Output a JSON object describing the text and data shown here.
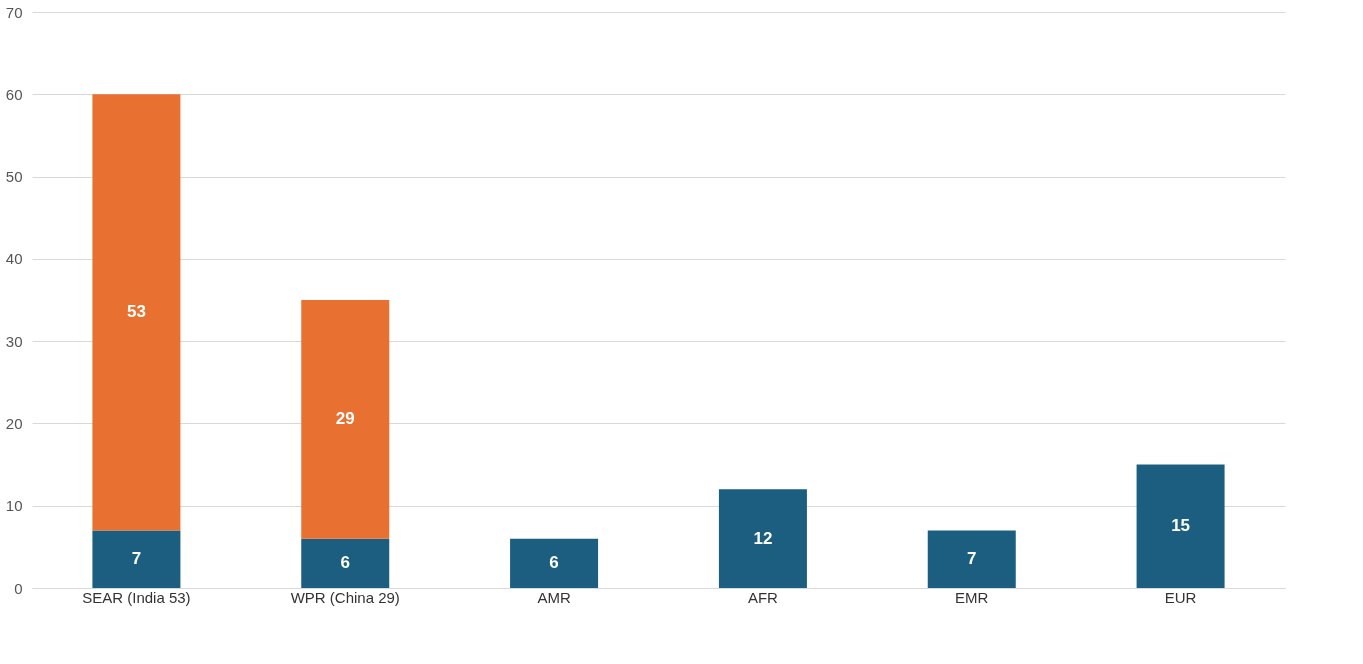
{
  "chart_data": {
    "type": "bar",
    "stacked": true,
    "categories": [
      "SEAR (India 53)",
      "WPR (China 29)",
      "AMR",
      "AFR",
      "EMR",
      "EUR"
    ],
    "series": [
      {
        "color": "#1b5e7f",
        "values": [
          7,
          6,
          6,
          12,
          7,
          15
        ]
      },
      {
        "color": "#e87131",
        "values": [
          53,
          29,
          null,
          null,
          null,
          null
        ]
      }
    ],
    "ylim": [
      0,
      70
    ],
    "yticks": [
      0,
      10,
      20,
      30,
      40,
      50,
      60,
      70
    ],
    "grid": "y",
    "data_labels": true
  }
}
